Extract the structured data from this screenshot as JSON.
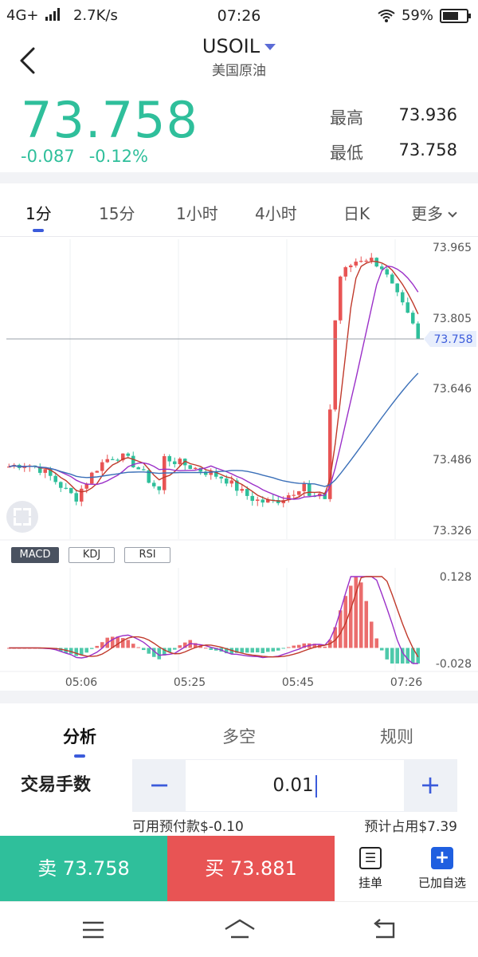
{
  "status_bar": {
    "network": "4G+",
    "speed": "2.7K/s",
    "time": "07:26",
    "battery": "59%",
    "icons": [
      "signal-icon",
      "wifi-icon",
      "battery-icon"
    ]
  },
  "header": {
    "symbol": "USOIL",
    "name": "美国原油"
  },
  "quote": {
    "price": "73.758",
    "change": "-0.087",
    "change_pct": "-0.12%",
    "high_label": "最高",
    "high": "73.936",
    "low_label": "最低",
    "low": "73.758",
    "colors": {
      "down": "#2fbf9b",
      "up": "#e85454"
    }
  },
  "timeframes": [
    "1分",
    "15分",
    "1小时",
    "4小时",
    "日K",
    "更多"
  ],
  "indicators": [
    "MACD",
    "KDJ",
    "RSI"
  ],
  "chart_data": {
    "type": "candlestick",
    "price_axis": [
      "73.965",
      "73.805",
      "73.646",
      "73.486",
      "73.326"
    ],
    "current_price_label": "73.758",
    "macd_axis": [
      "0.128",
      "-0.028"
    ],
    "time_axis": [
      "05:06",
      "05:25",
      "05:45",
      "07:26"
    ],
    "ylim": [
      73.326,
      73.965
    ],
    "macd_ylim": [
      -0.028,
      0.128
    ],
    "colors": {
      "up": "#e85454",
      "down": "#2fbf9b",
      "ma_red": "#c0392b",
      "ma_purple": "#9b30c8",
      "ma_blue": "#3a6fb8"
    }
  },
  "trade": {
    "tabs": [
      "分析",
      "多空",
      "规则"
    ],
    "lot_label": "交易手数",
    "lot_value": "0.01",
    "available": "可用预付款$-0.10",
    "estimated": "预计占用$7.39",
    "sell_label": "卖 73.758",
    "buy_label": "买 73.881",
    "pending_label": "挂单",
    "watch_label": "已加自选"
  }
}
